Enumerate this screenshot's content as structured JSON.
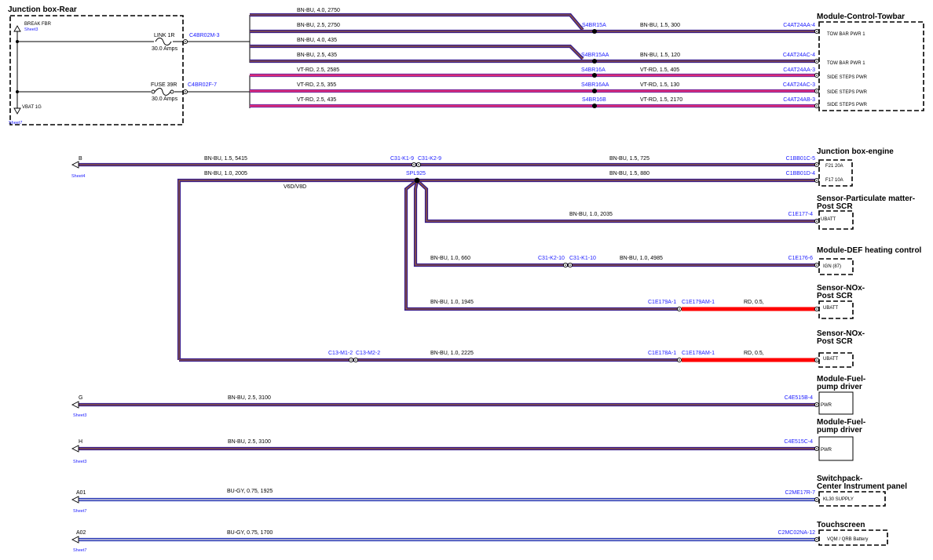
{
  "junction_box_rear": {
    "title": "Junction box-Rear",
    "break_fbr": "BREAK FBR",
    "sheet_top": "Sheet3",
    "link": "LINK 1R",
    "link_amps": "30.0 Amps",
    "link_conn": "C4BR02M-3",
    "fuse": "FUSE 39R",
    "fuse_amps": "30.0 Amps",
    "fuse_conn": "C4BR02F-7",
    "vbat": "VBAT 1G",
    "sheet_bottom": "Sheet7"
  },
  "top_wires": [
    {
      "spec": "BN-BU, 4.0, 2750"
    },
    {
      "spec": "BN-BU, 2.5, 2750",
      "splice": "S4BR15A",
      "spec2": "BN-BU, 1.5, 300",
      "end_conn": "C4AT24AA-4"
    },
    {
      "spec": "BN-BU, 4.0, 435"
    },
    {
      "spec": "BN-BU, 2.5, 435",
      "splice": "S4BR15AA",
      "spec2": "BN-BU, 1.5, 120",
      "end_conn": "C4AT24AC-4"
    },
    {
      "spec": "VT-RD, 2.5, 2585",
      "splice": "S4BR16A",
      "spec2": "VT-RD, 1.5, 405",
      "end_conn": "C4AT24AA-3"
    },
    {
      "spec": "VT-RD, 2.5, 355",
      "splice": "S4BR16AA",
      "spec2": "VT-RD, 1.5, 130",
      "end_conn": "C4AT24AC-3"
    },
    {
      "spec": "VT-RD, 2.5, 435",
      "splice": "S4BR16B",
      "spec2": "VT-RD, 1.5, 2170",
      "end_conn": "C4AT24AB-3"
    }
  ],
  "module_towbar": {
    "title": "Module-Control-Towbar",
    "pins": [
      "TOW BAR PWR 1",
      "TOW BAR PWR 1",
      "SIDE STEPS PWR",
      "SIDE STEPS PWR",
      "SIDE STEPS PWR"
    ]
  },
  "engine_section": {
    "left_label": "B",
    "left_sheet": "Sheet4",
    "wire1_spec": "BN-BU, 1.5, 5415",
    "c31_k1_9": "C31-K1-9",
    "c31_k2_9": "C31-K2-9",
    "wire1_spec2": "BN-BU, 1.5, 725",
    "wire1_end": "C1BB01C-5",
    "wire2_spec": "BN-BU, 1.0, 2005",
    "splice": "SPL925",
    "v6d": "V6D/V8D",
    "wire2_spec2": "BN-BU, 1.5, 880",
    "wire2_end": "C1BB01D-4"
  },
  "junction_box_engine": {
    "title": "Junction box-engine",
    "pins": [
      "F21 20A",
      "F17 10A"
    ]
  },
  "sensor_pm": {
    "title1": "Sensor-Particulate matter-",
    "title2": "Post SCR",
    "wire_spec": "BN-BU, 1.0, 2035",
    "conn": "C1E177-4",
    "pin": "UBATT"
  },
  "module_def": {
    "title": "Module-DEF heating control",
    "wire_spec": "BN-BU, 1.0, 660",
    "inline_a": "C31-K2-10",
    "inline_b": "C31-K1-10",
    "wire_spec2": "BN-BU, 1.0, 4985",
    "conn": "C1E176-6",
    "pin": "IGN (87)"
  },
  "sensor_nox1": {
    "title1": "Sensor-NOx-",
    "title2": "Post SCR",
    "wire_spec": "BN-BU, 1.0, 1945",
    "conn_a": "C1E179A-1",
    "conn_b": "C1E179AM-1",
    "wire_spec2": "RD, 0.5,",
    "pin": "UBATT"
  },
  "sensor_nox2": {
    "title1": "Sensor-NOx-",
    "title2": "Post SCR",
    "inline_a": "C13-M1-2",
    "inline_b": "C13-M2-2",
    "wire_spec": "BN-BU, 1.0, 2225",
    "conn_a": "C1E178A-1",
    "conn_b": "C1E178AM-1",
    "wire_spec2": "RD, 0.5,",
    "pin": "UBATT"
  },
  "fuel_pump1": {
    "title1": "Module-Fuel-",
    "title2": "pump driver",
    "left_label": "G",
    "left_sheet": "Sheet3",
    "wire_spec": "BN-BU, 2.5, 3100",
    "conn": "C4E515B-4",
    "pin": "PWR"
  },
  "fuel_pump2": {
    "title1": "Module-Fuel-",
    "title2": "pump driver",
    "left_label": "H",
    "left_sheet": "Sheet3",
    "wire_spec": "BN-BU, 2.5, 3100",
    "conn": "C4E515C-4",
    "pin": "PWR"
  },
  "switchpack": {
    "title1": "Switchpack-",
    "title2": "Center Instrument panel",
    "left_label": "A01",
    "left_sheet": "Sheet7",
    "wire_spec": "BU-GY, 0.75, 1925",
    "conn": "C2ME17R-7",
    "pin": "KL30 SUPPLY"
  },
  "touchscreen": {
    "title": "Touchscreen",
    "left_label": "A02",
    "left_sheet": "Sheet7",
    "wire_spec": "BU-GY, 0.75, 1700",
    "conn": "C2MC02NA-12",
    "pin": "VQM / QRB Battery"
  },
  "colors": {
    "bn_bu_outer": "#3a1e8c",
    "bn_bu_inner": "#b06a1c",
    "vt_rd_outer": "#7a2a9c",
    "vt_rd_inner": "#ff2a6a",
    "bu_gy_outer": "#2a3ab8",
    "bu_gy_inner": "#c8c8d8",
    "rd": "#ff0000",
    "connector_text": "#1a1aff"
  }
}
